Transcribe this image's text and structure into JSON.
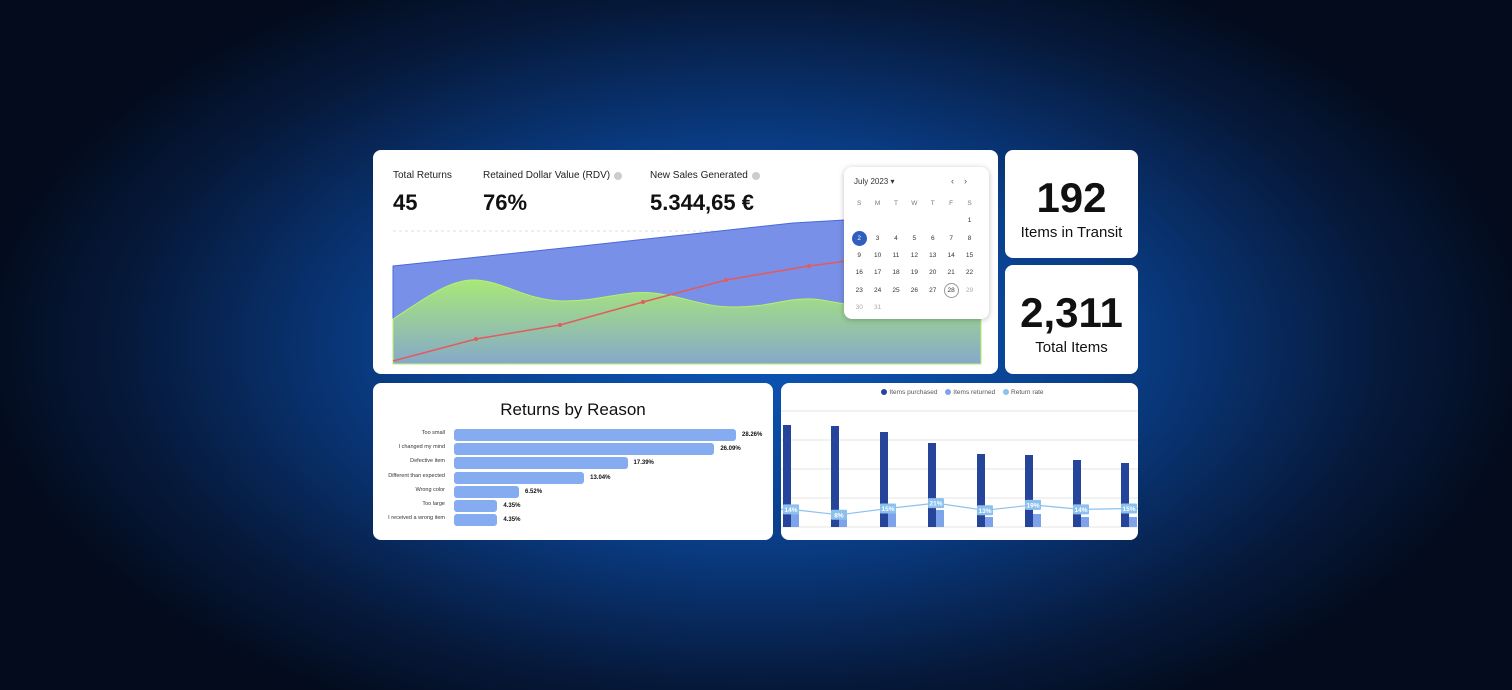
{
  "kpis": [
    {
      "label": "Total Returns",
      "value": "45",
      "info": false
    },
    {
      "label": "Retained Dollar Value (RDV)",
      "value": "76%",
      "info": true
    },
    {
      "label": "New Sales Generated",
      "value": "5.344,65 €",
      "info": true
    }
  ],
  "calendar": {
    "month": "July 2023",
    "weekdays": [
      "S",
      "M",
      "T",
      "W",
      "T",
      "F",
      "S"
    ],
    "days": [
      "",
      "",
      "",
      "",
      "",
      "",
      "1",
      "2",
      "3",
      "4",
      "5",
      "6",
      "7",
      "8",
      "9",
      "10",
      "11",
      "12",
      "13",
      "14",
      "15",
      "16",
      "17",
      "18",
      "19",
      "20",
      "21",
      "22",
      "23",
      "24",
      "25",
      "26",
      "27",
      "28",
      "29",
      "30",
      "31"
    ],
    "selected": "2",
    "today": "28",
    "muted": [
      "29",
      "30",
      "31"
    ]
  },
  "stats": [
    {
      "value": "192",
      "label": "Items in Transit"
    },
    {
      "value": "2,311",
      "label": "Total Items"
    }
  ],
  "returns_by_reason": {
    "title": "Returns by Reason",
    "items": [
      {
        "label": "Too small",
        "pct": "28.26%",
        "value": 28.26
      },
      {
        "label": "I changed my mind",
        "pct": "26.09%",
        "value": 26.09
      },
      {
        "label": "Defective item",
        "pct": "17.39%",
        "value": 17.39
      },
      {
        "label": "Different than expected",
        "pct": "13.04%",
        "value": 13.04
      },
      {
        "label": "Wrong color",
        "pct": "6.52%",
        "value": 6.52
      },
      {
        "label": "Too large",
        "pct": "4.35%",
        "value": 4.35
      },
      {
        "label": "I received a wrong item",
        "pct": "4.35%",
        "value": 4.35
      }
    ]
  },
  "chart_data": {
    "type": "bar",
    "legend": [
      "Items purchased",
      "Items returned",
      "Return rate"
    ],
    "legend_position": "top",
    "colors": {
      "purchased": "#27449b",
      "returned": "#7fa3ea",
      "rate": "#8cc1ee"
    },
    "series": [
      {
        "name": "Items purchased",
        "values": [
          102,
          101,
          95,
          84,
          73,
          72,
          67,
          64
        ]
      },
      {
        "name": "Items returned",
        "values": [
          22,
          8,
          14,
          17,
          10,
          13,
          10,
          10
        ]
      },
      {
        "name": "Return rate",
        "labels": [
          "14%",
          "8%",
          "15%",
          "21%",
          "13%",
          "19%",
          "14%",
          "15%"
        ],
        "values": [
          14,
          8,
          15,
          21,
          13,
          19,
          14,
          15
        ]
      }
    ],
    "grid": true
  },
  "colors": {
    "area_blue": "#7990e8",
    "area_green": "#9bd67e",
    "line_red": "#e35b5b",
    "accent": "#2f5fbf"
  }
}
